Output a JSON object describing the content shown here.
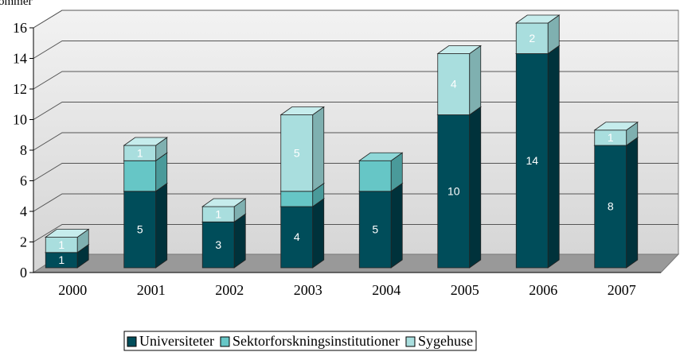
{
  "chart_data": {
    "type": "bar3d_stacked",
    "y_label": "ommer",
    "categories": [
      "2000",
      "2001",
      "2002",
      "2003",
      "2004",
      "2005",
      "2006",
      "2007"
    ],
    "series": [
      {
        "name": "Universiteter",
        "color": "#004d5a",
        "side": "#00323b",
        "top": "#3d7d88",
        "label_color": "#ffffff",
        "show_labels": true,
        "values": [
          1,
          5,
          3,
          4,
          5,
          10,
          14,
          8
        ]
      },
      {
        "name": "Sektorforskningsinstitutioner",
        "color": "#66c6c6",
        "side": "#4a9a9a",
        "top": "#8fd8d8",
        "label_color": "#ffffff",
        "show_labels": false,
        "values": [
          0,
          2,
          0,
          1,
          2,
          0,
          0,
          0
        ]
      },
      {
        "name": "Sygehuse",
        "color": "#a9dede",
        "side": "#7fb0b0",
        "top": "#c6ecec",
        "label_color": "#ffffff",
        "show_labels": true,
        "values": [
          1,
          1,
          1,
          5,
          0,
          4,
          2,
          1
        ]
      }
    ],
    "ylim": [
      0,
      16
    ],
    "yticks": [
      0,
      2,
      4,
      6,
      8,
      10,
      12,
      14,
      16
    ],
    "grid": true,
    "legend": "bottom"
  }
}
